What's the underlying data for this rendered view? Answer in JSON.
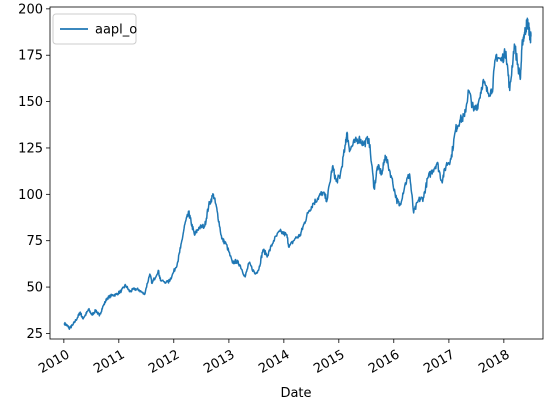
{
  "chart_data": {
    "type": "line",
    "xlabel": "Date",
    "ylabel": "",
    "xlim": [
      "2009-10-01",
      "2018-09-18"
    ],
    "ylim": [
      22,
      201
    ],
    "yticks": [
      25,
      50,
      75,
      100,
      125,
      150,
      175,
      200
    ],
    "xticks": [
      "2010",
      "2011",
      "2012",
      "2013",
      "2014",
      "2015",
      "2016",
      "2017",
      "2018"
    ],
    "grid": false,
    "legend_position": "top-left",
    "color": "#1f77b4",
    "series": [
      {
        "name": "aapl_o",
        "points": [
          [
            "2010-01-04",
            30.5
          ],
          [
            "2010-01-25",
            29
          ],
          [
            "2010-02-08",
            27.8
          ],
          [
            "2010-03-01",
            29.5
          ],
          [
            "2010-04-01",
            33.5
          ],
          [
            "2010-04-20",
            36.5
          ],
          [
            "2010-05-06",
            33
          ],
          [
            "2010-05-25",
            35
          ],
          [
            "2010-06-15",
            38
          ],
          [
            "2010-07-06",
            35
          ],
          [
            "2010-08-02",
            37.5
          ],
          [
            "2010-08-25",
            34.5
          ],
          [
            "2010-09-15",
            39
          ],
          [
            "2010-10-15",
            44
          ],
          [
            "2010-11-15",
            45.5
          ],
          [
            "2010-12-15",
            46
          ],
          [
            "2011-01-18",
            48
          ],
          [
            "2011-02-15",
            51
          ],
          [
            "2011-03-15",
            47.5
          ],
          [
            "2011-04-15",
            49
          ],
          [
            "2011-05-15",
            48.5
          ],
          [
            "2011-06-20",
            46
          ],
          [
            "2011-07-26",
            57
          ],
          [
            "2011-08-10",
            52
          ],
          [
            "2011-09-20",
            59
          ],
          [
            "2011-10-05",
            53.5
          ],
          [
            "2011-11-25",
            52.5
          ],
          [
            "2011-12-20",
            56
          ],
          [
            "2012-01-25",
            63
          ],
          [
            "2012-02-15",
            71
          ],
          [
            "2012-03-15",
            84
          ],
          [
            "2012-04-10",
            90
          ],
          [
            "2012-04-25",
            85
          ],
          [
            "2012-05-18",
            78
          ],
          [
            "2012-06-15",
            82
          ],
          [
            "2012-07-25",
            83
          ],
          [
            "2012-08-20",
            94
          ],
          [
            "2012-09-20",
            100
          ],
          [
            "2012-10-15",
            91
          ],
          [
            "2012-11-15",
            76
          ],
          [
            "2012-12-15",
            73
          ],
          [
            "2013-01-25",
            63
          ],
          [
            "2013-02-20",
            64
          ],
          [
            "2013-03-15",
            62
          ],
          [
            "2013-04-19",
            55.5
          ],
          [
            "2013-05-15",
            63
          ],
          [
            "2013-06-25",
            57
          ],
          [
            "2013-07-20",
            60
          ],
          [
            "2013-08-15",
            70
          ],
          [
            "2013-09-15",
            67
          ],
          [
            "2013-10-25",
            75
          ],
          [
            "2013-12-05",
            80
          ],
          [
            "2014-01-20",
            78
          ],
          [
            "2014-02-05",
            71.5
          ],
          [
            "2014-03-15",
            76
          ],
          [
            "2014-04-20",
            78
          ],
          [
            "2014-05-15",
            84
          ],
          [
            "2014-06-15",
            91
          ],
          [
            "2014-07-15",
            95
          ],
          [
            "2014-08-15",
            98
          ],
          [
            "2014-09-15",
            101
          ],
          [
            "2014-10-15",
            97
          ],
          [
            "2014-11-20",
            115
          ],
          [
            "2014-12-15",
            107
          ],
          [
            "2015-01-10",
            110
          ],
          [
            "2015-02-15",
            127
          ],
          [
            "2015-02-23",
            133
          ],
          [
            "2015-03-15",
            124
          ],
          [
            "2015-04-15",
            128
          ],
          [
            "2015-05-15",
            130
          ],
          [
            "2015-06-15",
            127
          ],
          [
            "2015-07-20",
            130
          ],
          [
            "2015-08-24",
            103
          ],
          [
            "2015-09-15",
            115
          ],
          [
            "2015-10-15",
            111
          ],
          [
            "2015-11-05",
            121
          ],
          [
            "2015-12-15",
            110
          ],
          [
            "2016-01-20",
            97
          ],
          [
            "2016-02-10",
            94
          ],
          [
            "2016-03-15",
            105
          ],
          [
            "2016-04-15",
            111
          ],
          [
            "2016-05-12",
            90
          ],
          [
            "2016-06-15",
            97
          ],
          [
            "2016-07-15",
            98
          ],
          [
            "2016-08-15",
            109
          ],
          [
            "2016-09-15",
            113
          ],
          [
            "2016-10-15",
            117
          ],
          [
            "2016-11-15",
            107
          ],
          [
            "2016-12-15",
            116
          ],
          [
            "2017-01-15",
            119
          ],
          [
            "2017-02-15",
            135
          ],
          [
            "2017-03-15",
            140
          ],
          [
            "2017-04-15",
            142
          ],
          [
            "2017-05-12",
            156
          ],
          [
            "2017-06-15",
            145
          ],
          [
            "2017-07-15",
            149
          ],
          [
            "2017-08-15",
            161
          ],
          [
            "2017-09-15",
            155
          ],
          [
            "2017-10-15",
            156
          ],
          [
            "2017-11-10",
            175
          ],
          [
            "2017-12-15",
            172
          ],
          [
            "2018-01-15",
            177
          ],
          [
            "2018-02-09",
            156
          ],
          [
            "2018-03-12",
            181
          ],
          [
            "2018-04-20",
            162
          ],
          [
            "2018-05-05",
            183
          ],
          [
            "2018-05-20",
            187
          ],
          [
            "2018-06-05",
            193
          ],
          [
            "2018-06-15",
            190
          ],
          [
            "2018-06-25",
            184
          ],
          [
            "2018-06-30",
            185
          ]
        ]
      }
    ]
  }
}
